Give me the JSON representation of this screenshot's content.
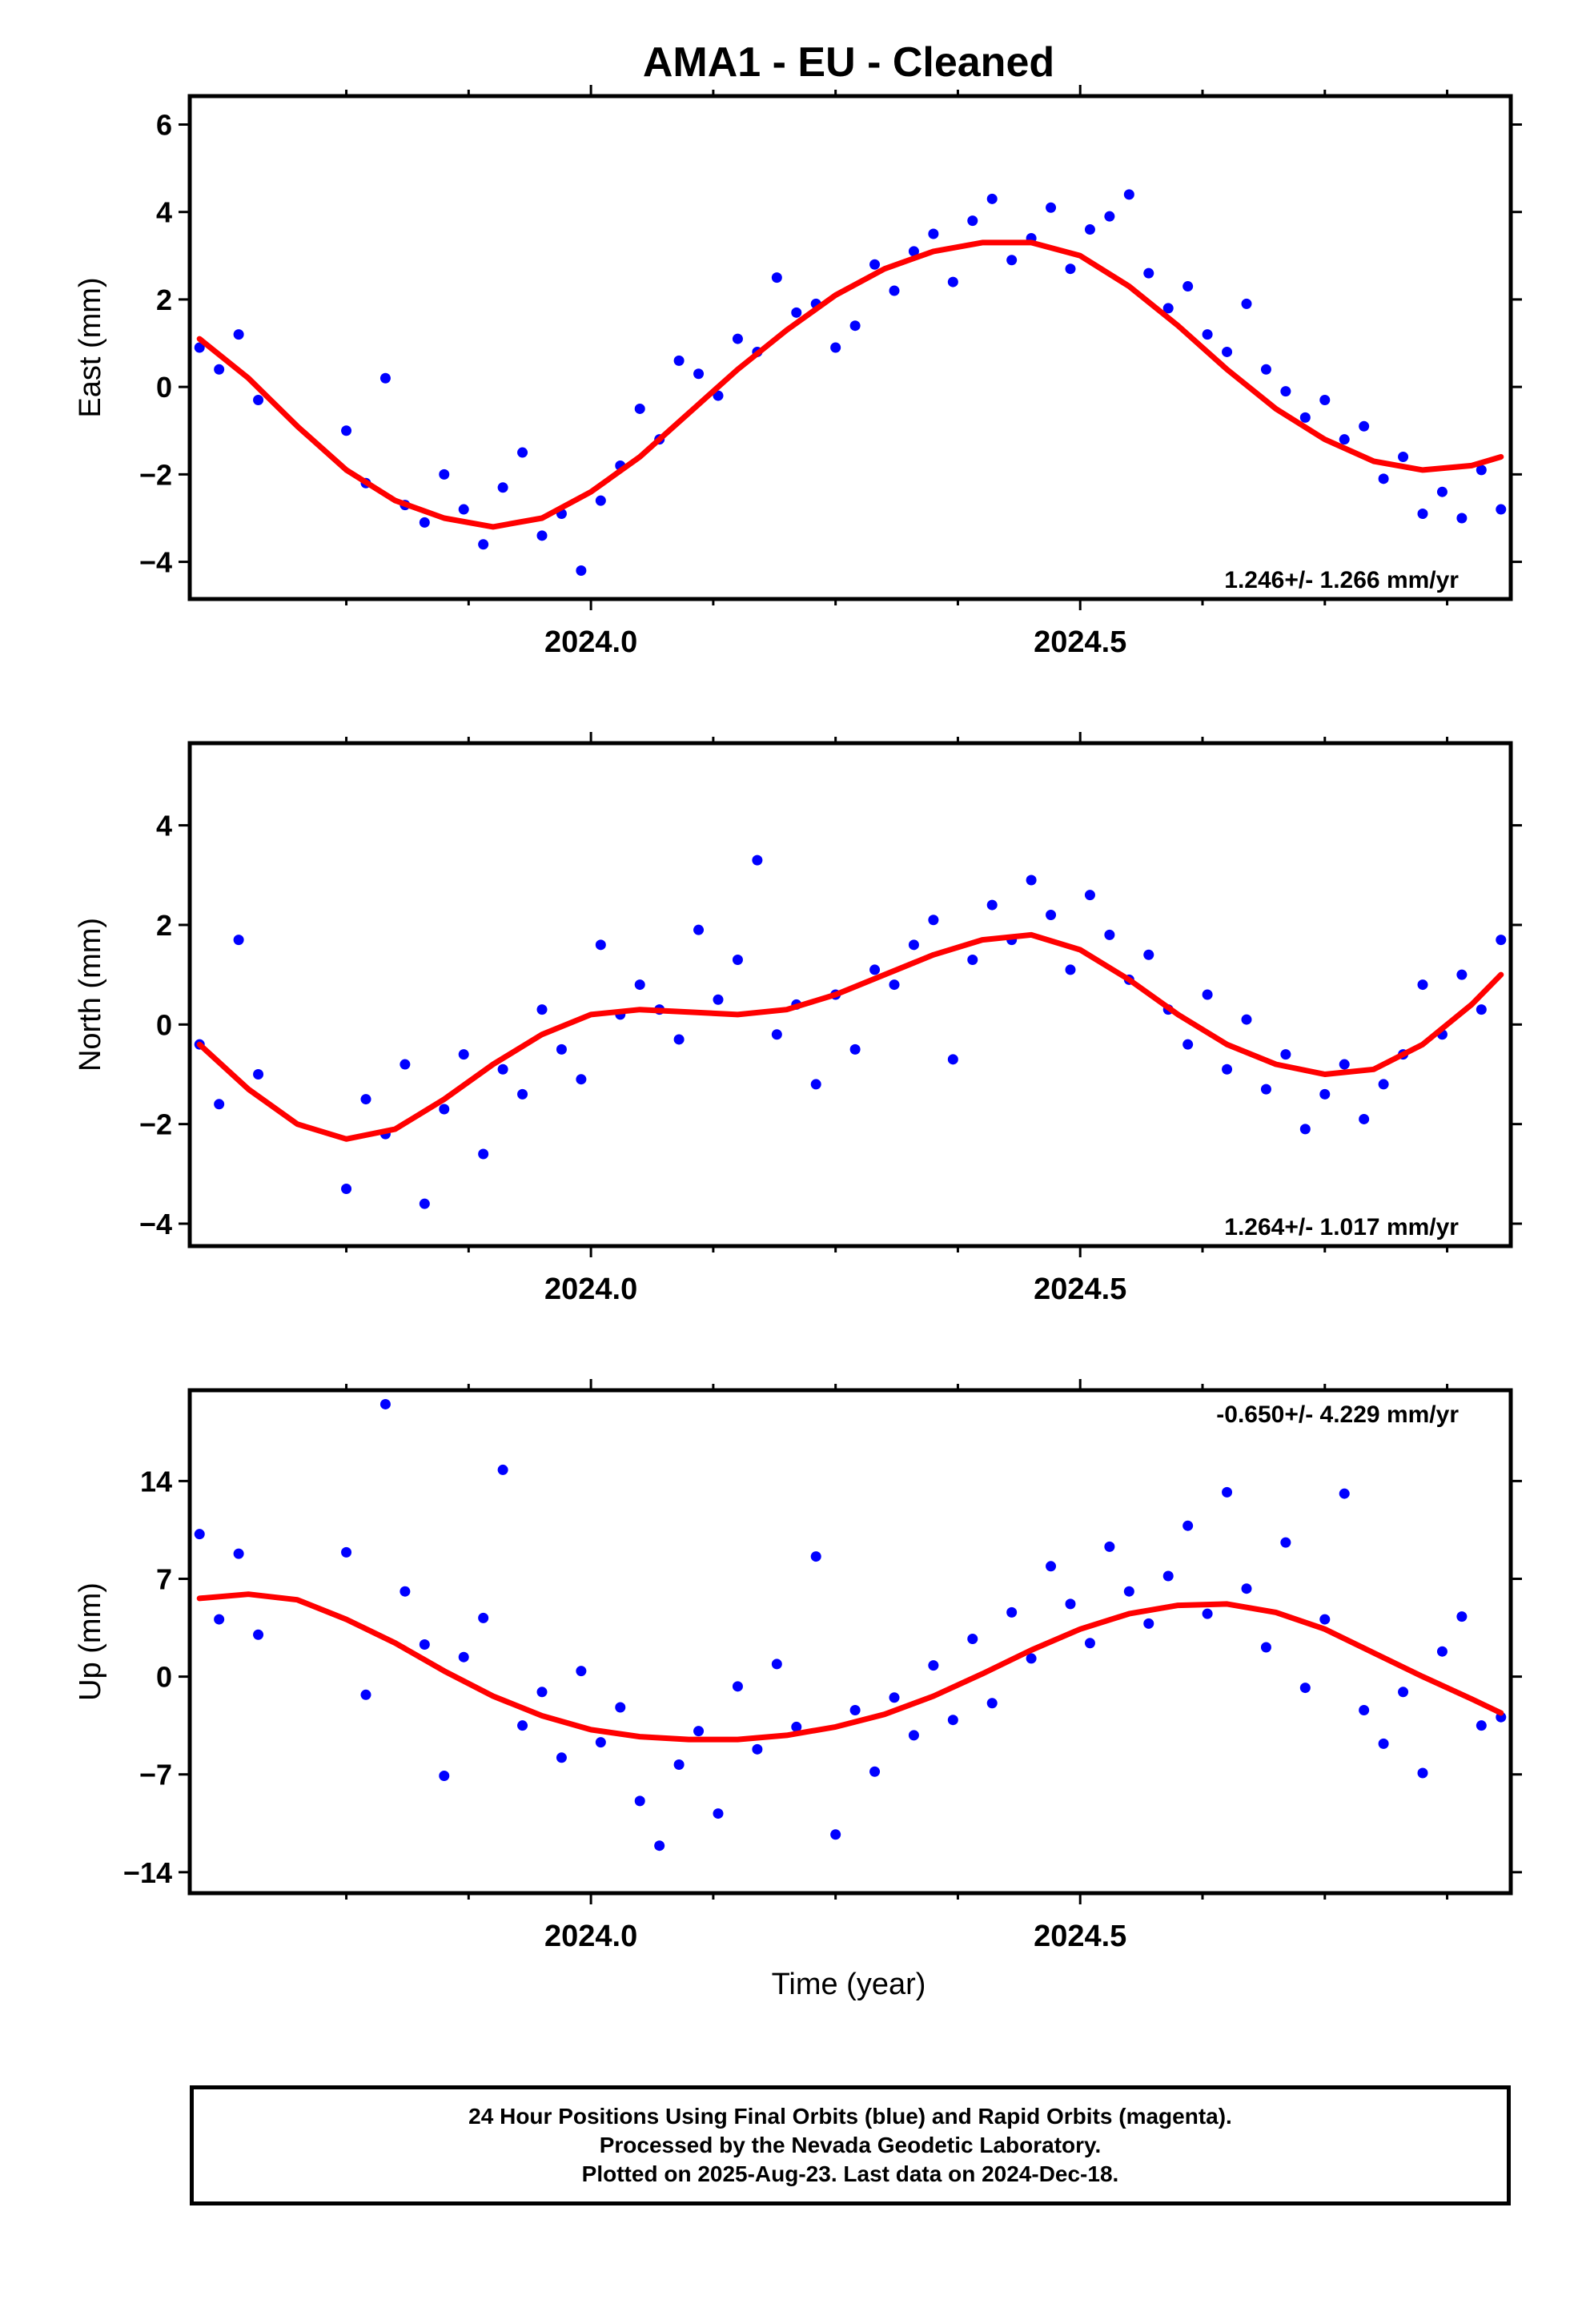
{
  "chart_data": [
    {
      "type": "scatter",
      "title": "AMA1  - EU - Cleaned",
      "ylabel": "East (mm)",
      "xlabel": "",
      "xlim": [
        2023.59,
        2024.94
      ],
      "ylim": [
        -4.85,
        6.65
      ],
      "x_ticks": [
        "2024.0",
        "2024.5"
      ],
      "y_ticks": [
        "6",
        "4",
        "2",
        "0",
        "−2",
        "−4"
      ],
      "y_tick_values": [
        6,
        4,
        2,
        0,
        -2,
        -4
      ],
      "grid": false,
      "rate_label": "1.246+/- 1.266 mm/yr",
      "rate_position": "bottom-right",
      "series": [
        {
          "name": "",
          "kind": "points",
          "color": "#0000ff",
          "x": [
            2023.6,
            2023.62,
            2023.64,
            2023.66,
            2023.75,
            2023.77,
            2023.79,
            2023.81,
            2023.83,
            2023.85,
            2023.87,
            2023.89,
            2023.91,
            2023.93,
            2023.95,
            2023.97,
            2023.99,
            2024.01,
            2024.03,
            2024.05,
            2024.07,
            2024.09,
            2024.11,
            2024.13,
            2024.15,
            2024.17,
            2024.19,
            2024.21,
            2024.23,
            2024.25,
            2024.27,
            2024.29,
            2024.31,
            2024.33,
            2024.35,
            2024.37,
            2024.39,
            2024.41,
            2024.43,
            2024.45,
            2024.47,
            2024.49,
            2024.51,
            2024.53,
            2024.55,
            2024.57,
            2024.59,
            2024.61,
            2024.63,
            2024.65,
            2024.67,
            2024.69,
            2024.71,
            2024.73,
            2024.75,
            2024.77,
            2024.79,
            2024.81,
            2024.83,
            2024.85,
            2024.87,
            2024.89,
            2024.91,
            2024.93
          ],
          "y": [
            0.9,
            0.4,
            1.2,
            -0.3,
            -1.0,
            -2.2,
            0.2,
            -2.7,
            -3.1,
            -2.0,
            -2.8,
            -3.6,
            -2.3,
            -1.5,
            -3.4,
            -2.9,
            -4.2,
            -2.6,
            -1.8,
            -0.5,
            -1.2,
            0.6,
            0.3,
            -0.2,
            1.1,
            0.8,
            2.5,
            1.7,
            1.9,
            0.9,
            1.4,
            2.8,
            2.2,
            3.1,
            3.5,
            2.4,
            3.8,
            4.3,
            2.9,
            3.4,
            4.1,
            2.7,
            3.6,
            3.9,
            4.4,
            2.6,
            1.8,
            2.3,
            1.2,
            0.8,
            1.9,
            0.4,
            -0.1,
            -0.7,
            -0.3,
            -1.2,
            -0.9,
            -2.1,
            -1.6,
            -2.9,
            -2.4,
            -3.0,
            -1.9,
            -2.8
          ]
        },
        {
          "name": "",
          "kind": "curve",
          "color": "#ff0000",
          "x": [
            2023.6,
            2023.65,
            2023.7,
            2023.75,
            2023.8,
            2023.85,
            2023.9,
            2023.95,
            2024.0,
            2024.05,
            2024.1,
            2024.15,
            2024.2,
            2024.25,
            2024.3,
            2024.35,
            2024.4,
            2024.45,
            2024.5,
            2024.55,
            2024.6,
            2024.65,
            2024.7,
            2024.75,
            2024.8,
            2024.85,
            2024.9,
            2024.93
          ],
          "y": [
            1.1,
            0.2,
            -0.9,
            -1.9,
            -2.6,
            -3.0,
            -3.2,
            -3.0,
            -2.4,
            -1.6,
            -0.6,
            0.4,
            1.3,
            2.1,
            2.7,
            3.1,
            3.3,
            3.3,
            3.0,
            2.3,
            1.4,
            0.4,
            -0.5,
            -1.2,
            -1.7,
            -1.9,
            -1.8,
            -1.6
          ]
        }
      ]
    },
    {
      "type": "scatter",
      "title": "",
      "ylabel": "North (mm)",
      "xlabel": "",
      "xlim": [
        2023.59,
        2024.94
      ],
      "ylim": [
        -4.45,
        5.65
      ],
      "x_ticks": [
        "2024.0",
        "2024.5"
      ],
      "y_ticks": [
        "4",
        "2",
        "0",
        "−2",
        "−4"
      ],
      "y_tick_values": [
        4,
        2,
        0,
        -2,
        -4
      ],
      "grid": false,
      "rate_label": "1.264+/- 1.017 mm/yr",
      "rate_position": "bottom-right",
      "series": [
        {
          "name": "",
          "kind": "points",
          "color": "#0000ff",
          "x": [
            2023.6,
            2023.62,
            2023.64,
            2023.66,
            2023.75,
            2023.77,
            2023.79,
            2023.81,
            2023.83,
            2023.85,
            2023.87,
            2023.89,
            2023.91,
            2023.93,
            2023.95,
            2023.97,
            2023.99,
            2024.01,
            2024.03,
            2024.05,
            2024.07,
            2024.09,
            2024.11,
            2024.13,
            2024.15,
            2024.17,
            2024.19,
            2024.21,
            2024.23,
            2024.25,
            2024.27,
            2024.29,
            2024.31,
            2024.33,
            2024.35,
            2024.37,
            2024.39,
            2024.41,
            2024.43,
            2024.45,
            2024.47,
            2024.49,
            2024.51,
            2024.53,
            2024.55,
            2024.57,
            2024.59,
            2024.61,
            2024.63,
            2024.65,
            2024.67,
            2024.69,
            2024.71,
            2024.73,
            2024.75,
            2024.77,
            2024.79,
            2024.81,
            2024.83,
            2024.85,
            2024.87,
            2024.89,
            2024.91,
            2024.93
          ],
          "y": [
            -0.4,
            -1.6,
            1.7,
            -1.0,
            -3.3,
            -1.5,
            -2.2,
            -0.8,
            -3.6,
            -1.7,
            -0.6,
            -2.6,
            -0.9,
            -1.4,
            0.3,
            -0.5,
            -1.1,
            1.6,
            0.2,
            0.8,
            0.3,
            -0.3,
            1.9,
            0.5,
            1.3,
            3.3,
            -0.2,
            0.4,
            -1.2,
            0.6,
            -0.5,
            1.1,
            0.8,
            1.6,
            2.1,
            -0.7,
            1.3,
            2.4,
            1.7,
            2.9,
            2.2,
            1.1,
            2.6,
            1.8,
            0.9,
            1.4,
            0.3,
            -0.4,
            0.6,
            -0.9,
            0.1,
            -1.3,
            -0.6,
            -2.1,
            -1.4,
            -0.8,
            -1.9,
            -1.2,
            -0.6,
            0.8,
            -0.2,
            1.0,
            0.3,
            1.7
          ]
        },
        {
          "name": "",
          "kind": "curve",
          "color": "#ff0000",
          "x": [
            2023.6,
            2023.65,
            2023.7,
            2023.75,
            2023.8,
            2023.85,
            2023.9,
            2023.95,
            2024.0,
            2024.05,
            2024.1,
            2024.15,
            2024.2,
            2024.25,
            2024.3,
            2024.35,
            2024.4,
            2024.45,
            2024.5,
            2024.55,
            2024.6,
            2024.65,
            2024.7,
            2024.75,
            2024.8,
            2024.85,
            2024.9,
            2024.93
          ],
          "y": [
            -0.4,
            -1.3,
            -2.0,
            -2.3,
            -2.1,
            -1.5,
            -0.8,
            -0.2,
            0.2,
            0.3,
            0.25,
            0.2,
            0.3,
            0.6,
            1.0,
            1.4,
            1.7,
            1.8,
            1.5,
            0.9,
            0.2,
            -0.4,
            -0.8,
            -1.0,
            -0.9,
            -0.4,
            0.4,
            1.0
          ]
        }
      ]
    },
    {
      "type": "scatter",
      "title": "",
      "ylabel": "Up (mm)",
      "xlabel": "Time (year)",
      "xlim": [
        2023.59,
        2024.94
      ],
      "ylim": [
        -15.5,
        20.5
      ],
      "x_ticks": [
        "2024.0",
        "2024.5"
      ],
      "y_ticks": [
        "14",
        "7",
        "0",
        "−7",
        "−14"
      ],
      "y_tick_values": [
        14,
        7,
        0,
        -7,
        -14
      ],
      "grid": false,
      "rate_label": "-0.650+/- 4.229 mm/yr",
      "rate_position": "top-right",
      "series": [
        {
          "name": "",
          "kind": "points",
          "color": "#0000ff",
          "x": [
            2023.6,
            2023.62,
            2023.64,
            2023.66,
            2023.75,
            2023.77,
            2023.79,
            2023.81,
            2023.83,
            2023.85,
            2023.87,
            2023.89,
            2023.91,
            2023.93,
            2023.95,
            2023.97,
            2023.99,
            2024.01,
            2024.03,
            2024.05,
            2024.07,
            2024.09,
            2024.11,
            2024.13,
            2024.15,
            2024.17,
            2024.19,
            2024.21,
            2024.23,
            2024.25,
            2024.27,
            2024.29,
            2024.31,
            2024.33,
            2024.35,
            2024.37,
            2024.39,
            2024.41,
            2024.43,
            2024.45,
            2024.47,
            2024.49,
            2024.51,
            2024.53,
            2024.55,
            2024.57,
            2024.59,
            2024.61,
            2024.63,
            2024.65,
            2024.67,
            2024.69,
            2024.71,
            2024.73,
            2024.75,
            2024.77,
            2024.79,
            2024.81,
            2024.83,
            2024.85,
            2024.87,
            2024.89,
            2024.91,
            2024.93
          ],
          "y": [
            10.2,
            4.1,
            8.8,
            3.0,
            8.9,
            -1.3,
            19.5,
            6.1,
            2.3,
            -7.1,
            1.4,
            4.2,
            14.8,
            -3.5,
            -1.1,
            -5.8,
            0.4,
            -4.7,
            -2.2,
            -8.9,
            -12.1,
            -6.3,
            -3.9,
            -9.8,
            -0.7,
            -5.2,
            0.9,
            -3.6,
            8.6,
            -11.3,
            -2.4,
            -6.8,
            -1.5,
            -4.2,
            0.8,
            -3.1,
            2.7,
            -1.9,
            4.6,
            1.3,
            7.9,
            5.2,
            2.4,
            9.3,
            6.1,
            3.8,
            7.2,
            10.8,
            4.5,
            13.2,
            6.3,
            2.1,
            9.6,
            -0.8,
            4.1,
            13.1,
            -2.4,
            -4.8,
            -1.1,
            -6.9,
            1.8,
            4.3,
            -3.5,
            -2.9
          ]
        },
        {
          "name": "",
          "kind": "curve",
          "color": "#ff0000",
          "x": [
            2023.6,
            2023.65,
            2023.7,
            2023.75,
            2023.8,
            2023.85,
            2023.9,
            2023.95,
            2024.0,
            2024.05,
            2024.1,
            2024.15,
            2024.2,
            2024.25,
            2024.3,
            2024.35,
            2024.4,
            2024.45,
            2024.5,
            2024.55,
            2024.6,
            2024.65,
            2024.7,
            2024.75,
            2024.8,
            2024.85,
            2024.9,
            2024.93
          ],
          "y": [
            5.6,
            5.9,
            5.5,
            4.1,
            2.4,
            0.4,
            -1.4,
            -2.8,
            -3.8,
            -4.3,
            -4.5,
            -4.5,
            -4.2,
            -3.6,
            -2.7,
            -1.4,
            0.2,
            1.9,
            3.4,
            4.5,
            5.1,
            5.2,
            4.6,
            3.4,
            1.7,
            0.0,
            -1.6,
            -2.6
          ]
        }
      ]
    }
  ],
  "footer": {
    "line1": "24 Hour Positions Using Final Orbits (blue) and Rapid Orbits (magenta).",
    "line2": "Processed by the Nevada Geodetic Laboratory.",
    "line3": "Plotted on 2025-Aug-23. Last data on 2024-Dec-18."
  }
}
